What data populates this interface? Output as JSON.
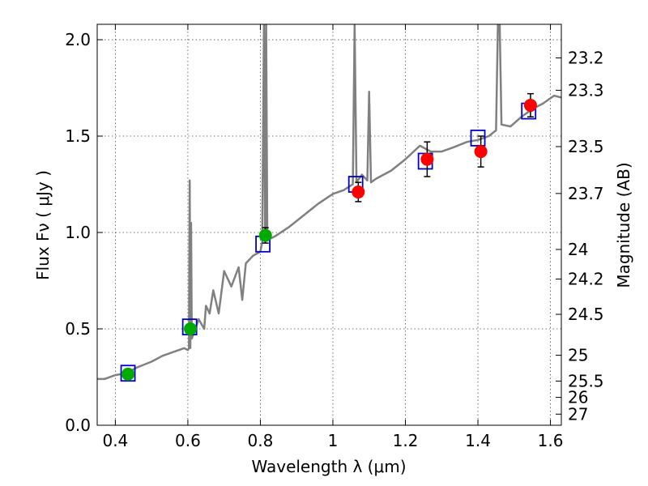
{
  "chart_data": {
    "type": "scatter",
    "title": "",
    "xlabel": "Wavelength  λ (μm)",
    "ylabel": "Flux  Fν  ( μJy )",
    "y2label": "Magnitude (AB)",
    "xlim": [
      0.35,
      1.63
    ],
    "ylim": [
      0.0,
      2.08
    ],
    "grid": true,
    "x_ticks": [
      0.4,
      0.6,
      0.8,
      1.0,
      1.2,
      1.4,
      1.6
    ],
    "x_tick_labels": [
      "0.4",
      "0.6",
      "0.8",
      "1",
      "1.2",
      "1.4",
      "1.6"
    ],
    "y_ticks": [
      0.0,
      0.5,
      1.0,
      1.5,
      2.0
    ],
    "y_tick_labels": [
      "0.0",
      "0.5",
      "1.0",
      "1.5",
      "2.0"
    ],
    "mag_ticks": [
      "23.2",
      "23.3",
      "23.5",
      "23.7",
      "24",
      "24.2",
      "24.5",
      "25",
      "25.5",
      "26",
      "27"
    ],
    "colors": {
      "model": "#808080",
      "model_photometry": "#0000cc",
      "obs_optical": "#00aa00",
      "obs_nir": "#ff0000",
      "errorbar": "#000000"
    },
    "model_spectrum": {
      "name": "",
      "points": [
        [
          0.35,
          0.24
        ],
        [
          0.37,
          0.24
        ],
        [
          0.4,
          0.26
        ],
        [
          0.43,
          0.27
        ],
        [
          0.46,
          0.3
        ],
        [
          0.5,
          0.33
        ],
        [
          0.53,
          0.36
        ],
        [
          0.56,
          0.38
        ],
        [
          0.59,
          0.4
        ],
        [
          0.6,
          0.39
        ],
        [
          0.603,
          0.4
        ],
        [
          0.605,
          1.27
        ],
        [
          0.607,
          0.4
        ],
        [
          0.609,
          1.05
        ],
        [
          0.611,
          0.45
        ],
        [
          0.63,
          0.55
        ],
        [
          0.645,
          0.5
        ],
        [
          0.65,
          0.62
        ],
        [
          0.66,
          0.58
        ],
        [
          0.67,
          0.7
        ],
        [
          0.685,
          0.58
        ],
        [
          0.7,
          0.8
        ],
        [
          0.72,
          0.72
        ],
        [
          0.74,
          0.82
        ],
        [
          0.75,
          0.65
        ],
        [
          0.76,
          0.84
        ],
        [
          0.78,
          0.88
        ],
        [
          0.8,
          0.9
        ],
        [
          0.805,
          0.95
        ],
        [
          0.81,
          2.08
        ],
        [
          0.813,
          0.95
        ],
        [
          0.816,
          2.08
        ],
        [
          0.819,
          0.96
        ],
        [
          0.84,
          0.98
        ],
        [
          0.88,
          1.03
        ],
        [
          0.92,
          1.09
        ],
        [
          0.96,
          1.15
        ],
        [
          1.0,
          1.2
        ],
        [
          1.03,
          1.22
        ],
        [
          1.055,
          1.25
        ],
        [
          1.06,
          2.08
        ],
        [
          1.065,
          1.26
        ],
        [
          1.08,
          1.3
        ],
        [
          1.095,
          1.27
        ],
        [
          1.1,
          1.73
        ],
        [
          1.105,
          1.26
        ],
        [
          1.12,
          1.28
        ],
        [
          1.16,
          1.32
        ],
        [
          1.2,
          1.38
        ],
        [
          1.24,
          1.45
        ],
        [
          1.27,
          1.42
        ],
        [
          1.3,
          1.42
        ],
        [
          1.33,
          1.44
        ],
        [
          1.37,
          1.47
        ],
        [
          1.4,
          1.48
        ],
        [
          1.43,
          1.5
        ],
        [
          1.45,
          1.53
        ],
        [
          1.455,
          2.08
        ],
        [
          1.46,
          2.08
        ],
        [
          1.465,
          1.56
        ],
        [
          1.49,
          1.55
        ],
        [
          1.52,
          1.6
        ],
        [
          1.55,
          1.64
        ],
        [
          1.58,
          1.67
        ],
        [
          1.61,
          1.71
        ],
        [
          1.63,
          1.7
        ]
      ]
    },
    "model_photometry": {
      "name": "",
      "points": [
        [
          0.435,
          0.27
        ],
        [
          0.605,
          0.51
        ],
        [
          0.807,
          0.94
        ],
        [
          1.063,
          1.25
        ],
        [
          1.255,
          1.37
        ],
        [
          1.4,
          1.49
        ],
        [
          1.54,
          1.63
        ]
      ]
    },
    "observed_optical": {
      "name": "",
      "points": [
        {
          "x": 0.435,
          "y": 0.265,
          "err": 0.025
        },
        {
          "x": 0.607,
          "y": 0.5,
          "err": 0.02
        },
        {
          "x": 0.814,
          "y": 0.985,
          "err": 0.04
        }
      ]
    },
    "observed_nir": {
      "name": "",
      "points": [
        {
          "x": 1.07,
          "y": 1.21,
          "err": 0.05
        },
        {
          "x": 1.26,
          "y": 1.38,
          "err": 0.09
        },
        {
          "x": 1.408,
          "y": 1.42,
          "err": 0.08
        },
        {
          "x": 1.545,
          "y": 1.66,
          "err": 0.06
        }
      ]
    }
  }
}
